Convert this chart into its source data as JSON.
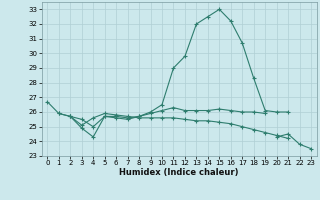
{
  "xlabel": "Humidex (Indice chaleur)",
  "ylabel": "",
  "xlim": [
    -0.5,
    23.5
  ],
  "ylim": [
    23,
    33.5
  ],
  "yticks": [
    23,
    24,
    25,
    26,
    27,
    28,
    29,
    30,
    31,
    32,
    33
  ],
  "xticks": [
    0,
    1,
    2,
    3,
    4,
    5,
    6,
    7,
    8,
    9,
    10,
    11,
    12,
    13,
    14,
    15,
    16,
    17,
    18,
    19,
    20,
    21,
    22,
    23
  ],
  "bg_color": "#cce8ec",
  "grid_color": "#b0cfd5",
  "line_color": "#2e7d6e",
  "lines": [
    {
      "x": [
        0,
        1,
        2,
        3,
        4,
        5,
        6,
        7,
        8,
        9,
        10,
        11,
        12,
        13,
        14,
        15,
        16,
        17,
        18,
        19,
        20,
        21
      ],
      "y": [
        26.7,
        25.9,
        25.7,
        25.5,
        25.0,
        25.7,
        25.6,
        25.5,
        25.7,
        26.0,
        26.5,
        29.0,
        29.8,
        32.0,
        32.5,
        33.0,
        32.2,
        30.7,
        28.3,
        26.1,
        26.0,
        26.0
      ]
    },
    {
      "x": [
        1,
        2,
        3,
        4,
        5,
        6,
        7,
        8,
        9,
        10,
        11,
        12,
        13,
        14,
        15,
        16,
        17,
        18,
        19
      ],
      "y": [
        25.9,
        25.7,
        24.9,
        24.3,
        25.7,
        25.7,
        25.6,
        25.7,
        25.9,
        26.1,
        26.3,
        26.1,
        26.1,
        26.1,
        26.2,
        26.1,
        26.0,
        26.0,
        25.9
      ]
    },
    {
      "x": [
        2,
        3,
        4,
        5,
        6,
        7,
        8,
        9,
        10,
        11,
        12,
        13,
        14,
        15,
        16,
        17,
        18,
        19,
        20,
        21
      ],
      "y": [
        25.7,
        25.1,
        25.6,
        25.9,
        25.8,
        25.7,
        25.6,
        25.6,
        25.6,
        25.6,
        25.5,
        25.4,
        25.4,
        25.3,
        25.2,
        25.0,
        24.8,
        24.6,
        24.4,
        24.2
      ]
    },
    {
      "x": [
        20,
        21,
        22,
        23
      ],
      "y": [
        24.3,
        24.5,
        23.8,
        23.5
      ]
    }
  ]
}
